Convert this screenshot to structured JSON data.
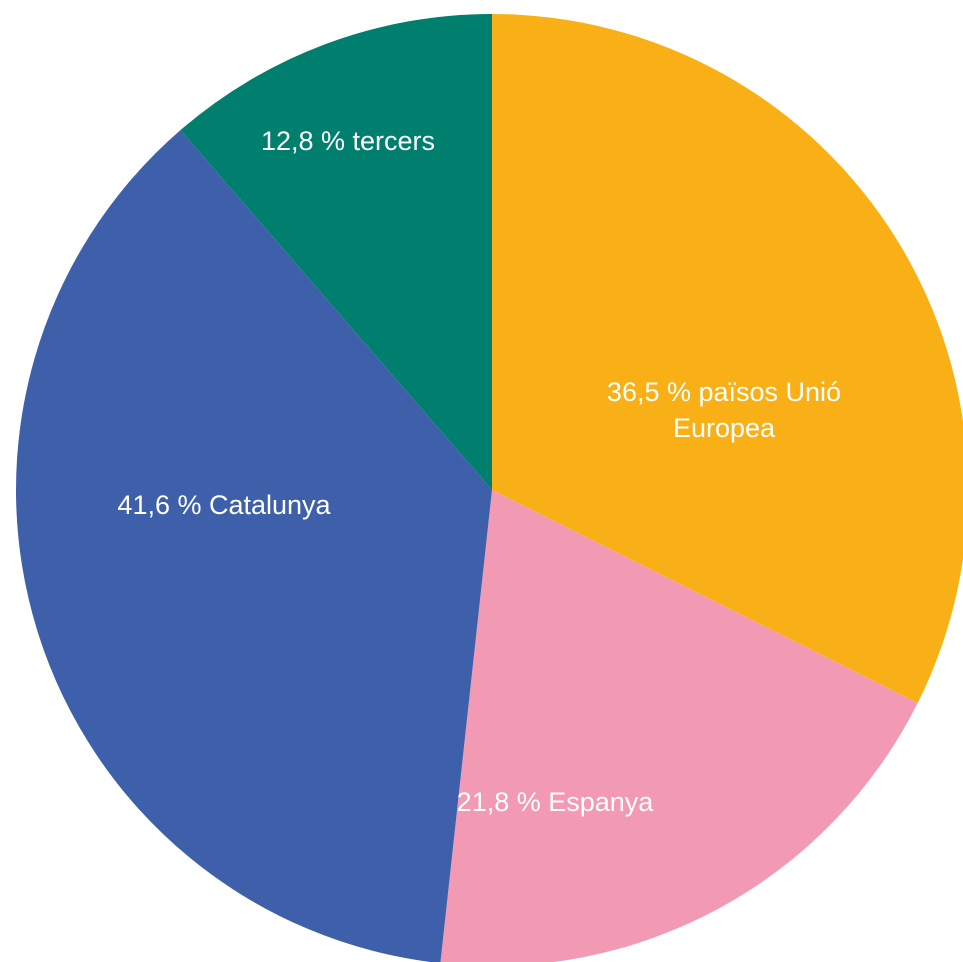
{
  "chart_data": {
    "type": "pie",
    "start_angle_deg": 0,
    "direction": "clockwise",
    "slices": [
      {
        "value": 36.5,
        "label_lines": [
          "36,5 % països Unió",
          "Europea"
        ],
        "color": "#F8B016"
      },
      {
        "value": 21.8,
        "label_lines": [
          "21,8 % Espanya"
        ],
        "color": "#F29AB3"
      },
      {
        "value": 41.6,
        "label_lines": [
          "41,6 % Catalunya"
        ],
        "color": "#3E60AA"
      },
      {
        "value": 12.8,
        "label_lines": [
          "12,8 % tercers"
        ],
        "color": "#007E6E"
      }
    ]
  }
}
